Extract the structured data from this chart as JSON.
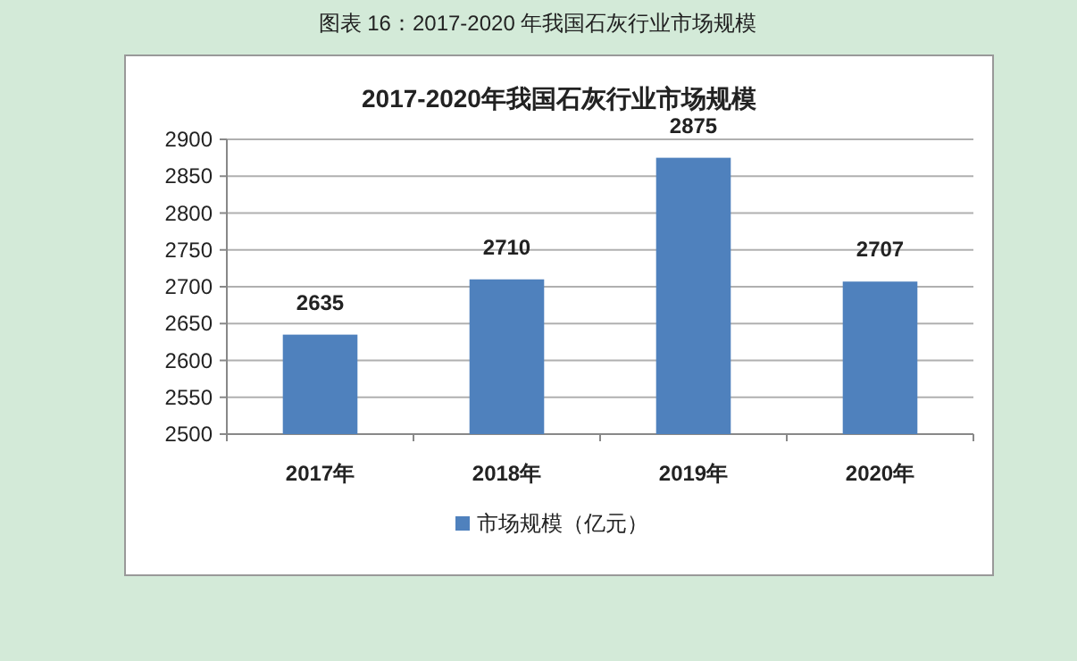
{
  "chart_data": {
    "type": "bar",
    "title": "2017-2020年我国石灰行业市场规模",
    "annotations": [
      "图表 16：2017-2020 年我国石灰行业市场规模"
    ],
    "categories": [
      "2017年",
      "2018年",
      "2019年",
      "2020年"
    ],
    "series": [
      {
        "name": "市场规模（亿元）",
        "color": "#4f81bd",
        "values": [
          2635,
          2710,
          2875,
          2707
        ]
      }
    ],
    "ylim": [
      2500,
      2900
    ],
    "yticks": [
      2500,
      2550,
      2600,
      2650,
      2700,
      2750,
      2800,
      2850,
      2900
    ],
    "grid": "y",
    "legend": "bottom",
    "data_labels": true
  }
}
